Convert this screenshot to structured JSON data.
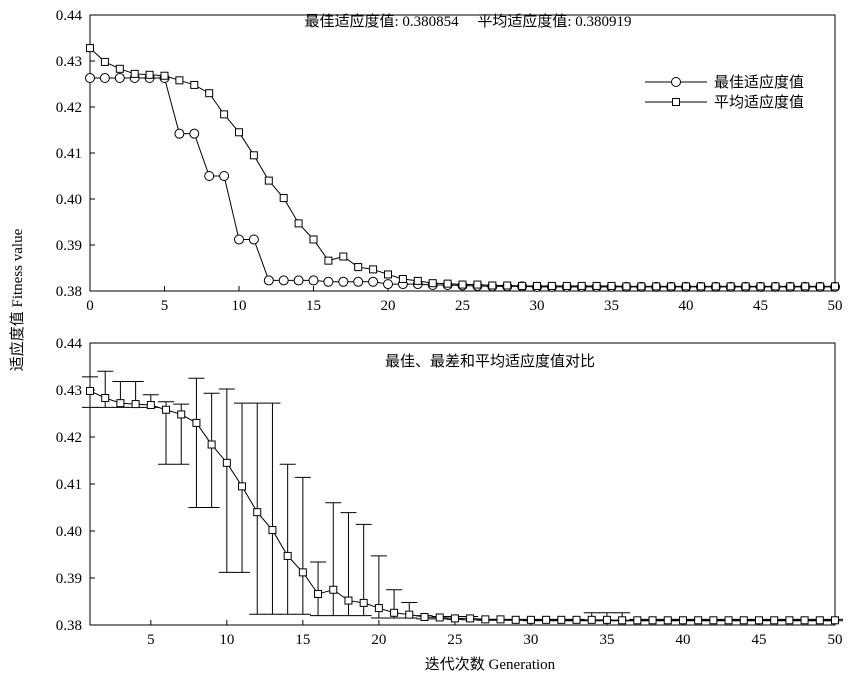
{
  "chart_data": [
    {
      "type": "line",
      "title": "最佳适应度值: 0.380854     平均适应度值: 0.380919",
      "x": [
        0,
        1,
        2,
        3,
        4,
        5,
        6,
        7,
        8,
        9,
        10,
        11,
        12,
        13,
        14,
        15,
        16,
        17,
        18,
        19,
        20,
        21,
        22,
        23,
        24,
        25,
        26,
        27,
        28,
        29,
        30,
        31,
        32,
        33,
        34,
        35,
        36,
        37,
        38,
        39,
        40,
        41,
        42,
        43,
        44,
        45,
        46,
        47,
        48,
        49,
        50
      ],
      "series": [
        {
          "name": "最佳适应度值",
          "marker": "circle",
          "values": [
            0.4263,
            0.4263,
            0.4263,
            0.4263,
            0.4263,
            0.4263,
            0.4142,
            0.4142,
            0.405,
            0.405,
            0.3912,
            0.3912,
            0.3823,
            0.3823,
            0.3823,
            0.3823,
            0.382,
            0.382,
            0.382,
            0.382,
            0.3815,
            0.3815,
            0.3815,
            0.3813,
            0.3813,
            0.3812,
            0.3811,
            0.381,
            0.381,
            0.381,
            0.3809,
            0.3809,
            0.3809,
            0.3809,
            0.3809,
            0.3809,
            0.3809,
            0.3809,
            0.3809,
            0.3809,
            0.3809,
            0.3809,
            0.3809,
            0.3809,
            0.3809,
            0.3809,
            0.3809,
            0.3809,
            0.3809,
            0.3809,
            0.3809
          ]
        },
        {
          "name": "平均适应度值",
          "marker": "square",
          "values": [
            0.4328,
            0.4298,
            0.4283,
            0.4272,
            0.427,
            0.4268,
            0.4258,
            0.4248,
            0.423,
            0.4184,
            0.4145,
            0.4095,
            0.404,
            0.4002,
            0.3947,
            0.3912,
            0.3866,
            0.3875,
            0.3852,
            0.3847,
            0.3836,
            0.3826,
            0.3822,
            0.3817,
            0.3816,
            0.3814,
            0.3814,
            0.3812,
            0.3812,
            0.3811,
            0.3811,
            0.3811,
            0.3811,
            0.3811,
            0.3811,
            0.3811,
            0.381,
            0.381,
            0.381,
            0.381,
            0.381,
            0.381,
            0.381,
            0.381,
            0.381,
            0.381,
            0.381,
            0.381,
            0.381,
            0.381,
            0.381
          ]
        }
      ],
      "xlim": [
        0,
        50
      ],
      "ylim": [
        0.38,
        0.44
      ],
      "xticks": [
        "0",
        "5",
        "10",
        "15",
        "20",
        "25",
        "30",
        "35",
        "40",
        "45",
        "50"
      ],
      "yticks": [
        "0.38",
        "0.39",
        "0.40",
        "0.41",
        "0.42",
        "0.43",
        "0.44"
      ],
      "legend": "top-right",
      "grid": false
    },
    {
      "type": "line",
      "title": "最佳、最差和平均适应度值对比",
      "x": [
        1,
        2,
        3,
        4,
        5,
        6,
        7,
        8,
        9,
        10,
        11,
        12,
        13,
        14,
        15,
        16,
        17,
        18,
        19,
        20,
        21,
        22,
        23,
        24,
        25,
        26,
        27,
        28,
        29,
        30,
        31,
        32,
        33,
        34,
        35,
        36,
        37,
        38,
        39,
        40,
        41,
        42,
        43,
        44,
        45,
        46,
        47,
        48,
        49,
        50
      ],
      "series": [
        {
          "marker": "square",
          "values": [
            0.4298,
            0.4283,
            0.4272,
            0.427,
            0.4268,
            0.4258,
            0.4248,
            0.423,
            0.4184,
            0.4145,
            0.4095,
            0.404,
            0.4002,
            0.3947,
            0.3912,
            0.3866,
            0.3875,
            0.3852,
            0.3847,
            0.3836,
            0.3826,
            0.3822,
            0.3817,
            0.3816,
            0.3814,
            0.3814,
            0.3812,
            0.3812,
            0.3811,
            0.3811,
            0.3811,
            0.3811,
            0.3811,
            0.3811,
            0.3811,
            0.381,
            0.381,
            0.381,
            0.381,
            0.381,
            0.381,
            0.381,
            0.381,
            0.381,
            0.381,
            0.381,
            0.381,
            0.381,
            0.381,
            0.381
          ]
        }
      ],
      "error_lower": [
        0.4263,
        0.4263,
        0.4263,
        0.4263,
        0.4263,
        0.4142,
        0.4142,
        0.405,
        0.405,
        0.3912,
        0.3912,
        0.3823,
        0.3823,
        0.3823,
        0.3823,
        0.382,
        0.382,
        0.382,
        0.382,
        0.3815,
        0.3815,
        0.3815,
        0.3813,
        0.3813,
        0.3812,
        0.3811,
        0.381,
        0.381,
        0.381,
        0.3809,
        0.3809,
        0.3809,
        0.3809,
        0.3809,
        0.3809,
        0.3809,
        0.3809,
        0.3809,
        0.3809,
        0.3809,
        0.3809,
        0.3809,
        0.3809,
        0.3809,
        0.3809,
        0.3809,
        0.3809,
        0.3809,
        0.3809,
        0.3809
      ],
      "error_upper": [
        0.4328,
        0.434,
        0.4318,
        0.4318,
        0.429,
        0.4275,
        0.427,
        0.4325,
        0.4293,
        0.4302,
        0.4272,
        0.4272,
        0.4272,
        0.4142,
        0.4114,
        0.3934,
        0.406,
        0.4039,
        0.4014,
        0.3947,
        0.3875,
        0.3848,
        0.382,
        0.3818,
        0.3818,
        0.3818,
        0.3812,
        0.3812,
        0.3812,
        0.3812,
        0.3812,
        0.3812,
        0.3812,
        0.3826,
        0.3826,
        0.3826,
        0.3812,
        0.3812,
        0.3812,
        0.3812,
        0.3812,
        0.3812,
        0.3812,
        0.3812,
        0.3812,
        0.3812,
        0.3812,
        0.3812,
        0.3812,
        0.3812
      ],
      "xlim": [
        1,
        50
      ],
      "ylim": [
        0.38,
        0.44
      ],
      "xticks": [
        "5",
        "10",
        "15",
        "20",
        "25",
        "30",
        "35",
        "40",
        "45",
        "50"
      ],
      "yticks": [
        "0.38",
        "0.39",
        "0.40",
        "0.41",
        "0.42",
        "0.43",
        "0.44"
      ],
      "grid": false
    }
  ],
  "labels": {
    "ylabel": "适应度值 Fitness value",
    "xlabel": "迭代次数 Generation"
  }
}
